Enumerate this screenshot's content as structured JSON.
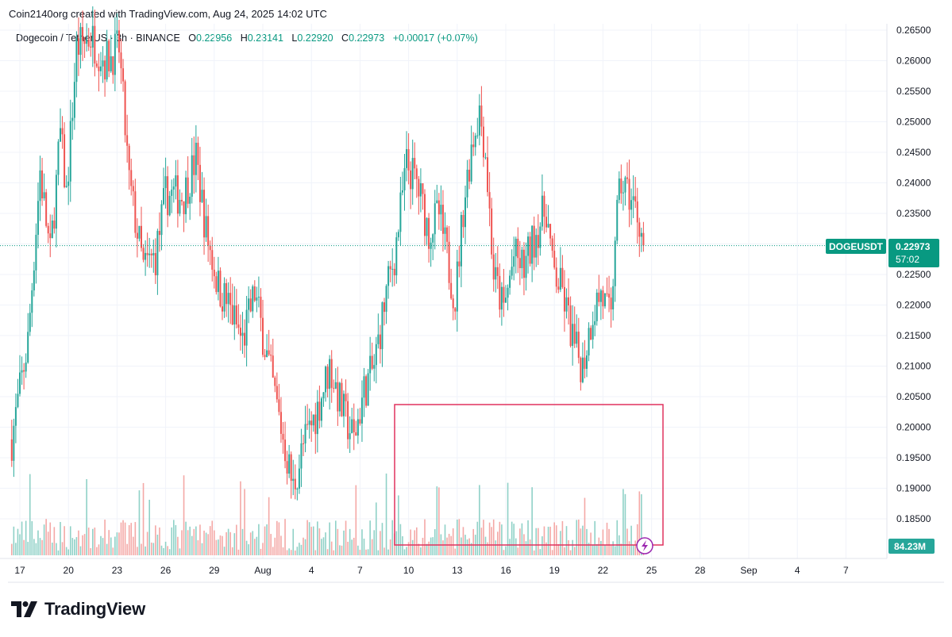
{
  "header": {
    "text": "Coin2140org created with TradingView.com, Aug 24, 2025 14:02 UTC"
  },
  "legend": {
    "symbol": "Dogecoin / TetherUS · 3h · BINANCE",
    "o_label": "O",
    "o_value": "0.22956",
    "h_label": "H",
    "h_value": "0.23141",
    "l_label": "L",
    "l_value": "0.22920",
    "c_label": "C",
    "c_value": "0.22973",
    "change": "+0.00017 (+0.07%)"
  },
  "price_tag": {
    "symbol": "DOGEUSDT",
    "price": "0.22973",
    "countdown": "57:02"
  },
  "volume_tag": "84.23M",
  "brand": {
    "text": "TradingView"
  },
  "colors": {
    "up": "#26a69a",
    "down": "#ef5350",
    "up_vol": "#8fd1c7",
    "down_vol": "#f4a8a6",
    "box": "#e0325e",
    "lightning": "#9c27b0",
    "tag": "#089981"
  },
  "chart_data": {
    "type": "candlestick",
    "y_axis": {
      "ticks": [
        "0.26500",
        "0.26000",
        "0.25500",
        "0.25000",
        "0.24500",
        "0.24000",
        "0.23500",
        "0.23000",
        "0.22500",
        "0.22000",
        "0.21500",
        "0.21000",
        "0.20500",
        "0.20000",
        "0.19500",
        "0.19000",
        "0.18500"
      ]
    },
    "x_axis": {
      "ticks": [
        "17",
        "20",
        "23",
        "26",
        "29",
        "Aug",
        "4",
        "7",
        "10",
        "13",
        "16",
        "19",
        "22",
        "25",
        "28",
        "Sep",
        "4",
        "7"
      ]
    },
    "last_price": 0.22973,
    "anchors": [
      {
        "date": "Jul 16 12:00",
        "close": 0.198
      },
      {
        "date": "Jul 17 12:00",
        "close": 0.214
      },
      {
        "date": "Jul 18 06:00",
        "close": 0.242
      },
      {
        "date": "Jul 18 21:00",
        "close": 0.228
      },
      {
        "date": "Jul 19 12:00",
        "close": 0.248
      },
      {
        "date": "Jul 19 21:00",
        "close": 0.238
      },
      {
        "date": "Jul 20 12:00",
        "close": 0.262
      },
      {
        "date": "Jul 21 09:00",
        "close": 0.264
      },
      {
        "date": "Jul 22 06:00",
        "close": 0.26
      },
      {
        "date": "Jul 23 03:00",
        "close": 0.262
      },
      {
        "date": "Jul 23 18:00",
        "close": 0.24
      },
      {
        "date": "Jul 24 15:00",
        "close": 0.226
      },
      {
        "date": "Jul 25 09:00",
        "close": 0.228
      },
      {
        "date": "Jul 26 00:00",
        "close": 0.238
      },
      {
        "date": "Jul 27 03:00",
        "close": 0.238
      },
      {
        "date": "Jul 27 21:00",
        "close": 0.244
      },
      {
        "date": "Jul 28 12:00",
        "close": 0.232
      },
      {
        "date": "Jul 29 06:00",
        "close": 0.223
      },
      {
        "date": "Jul 29 21:00",
        "close": 0.22
      },
      {
        "date": "Jul 30 18:00",
        "close": 0.214
      },
      {
        "date": "Jul 31 12:00",
        "close": 0.222
      },
      {
        "date": "Aug 01 09:00",
        "close": 0.21
      },
      {
        "date": "Aug 02 03:00",
        "close": 0.2
      },
      {
        "date": "Aug 02 21:00",
        "close": 0.19
      },
      {
        "date": "Aug 03 12:00",
        "close": 0.197
      },
      {
        "date": "Aug 04 09:00",
        "close": 0.203
      },
      {
        "date": "Aug 05 03:00",
        "close": 0.21
      },
      {
        "date": "Aug 05 21:00",
        "close": 0.203
      },
      {
        "date": "Aug 06 15:00",
        "close": 0.198
      },
      {
        "date": "Aug 07 06:00",
        "close": 0.206
      },
      {
        "date": "Aug 07 21:00",
        "close": 0.21
      },
      {
        "date": "Aug 08 15:00",
        "close": 0.222
      },
      {
        "date": "Aug 09 03:00",
        "close": 0.228
      },
      {
        "date": "Aug 09 21:00",
        "close": 0.243
      },
      {
        "date": "Aug 10 12:00",
        "close": 0.24
      },
      {
        "date": "Aug 11 06:00",
        "close": 0.232
      },
      {
        "date": "Aug 11 21:00",
        "close": 0.235
      },
      {
        "date": "Aug 12 12:00",
        "close": 0.226
      },
      {
        "date": "Aug 12 21:00",
        "close": 0.221
      },
      {
        "date": "Aug 13 09:00",
        "close": 0.236
      },
      {
        "date": "Aug 13 21:00",
        "close": 0.246
      },
      {
        "date": "Aug 14 09:00",
        "close": 0.252
      },
      {
        "date": "Aug 14 18:00",
        "close": 0.245
      },
      {
        "date": "Aug 15 06:00",
        "close": 0.225
      },
      {
        "date": "Aug 15 21:00",
        "close": 0.219
      },
      {
        "date": "Aug 16 12:00",
        "close": 0.228
      },
      {
        "date": "Aug 17 03:00",
        "close": 0.226
      },
      {
        "date": "Aug 17 21:00",
        "close": 0.232
      },
      {
        "date": "Aug 18 12:00",
        "close": 0.236
      },
      {
        "date": "Aug 18 21:00",
        "close": 0.226
      },
      {
        "date": "Aug 19 12:00",
        "close": 0.222
      },
      {
        "date": "Aug 20 06:00",
        "close": 0.213
      },
      {
        "date": "Aug 20 18:00",
        "close": 0.21
      },
      {
        "date": "Aug 21 09:00",
        "close": 0.219
      },
      {
        "date": "Aug 21 21:00",
        "close": 0.222
      },
      {
        "date": "Aug 22 12:00",
        "close": 0.217
      },
      {
        "date": "Aug 22 18:00",
        "close": 0.232
      },
      {
        "date": "Aug 23 03:00",
        "close": 0.24
      },
      {
        "date": "Aug 23 15:00",
        "close": 0.238
      },
      {
        "date": "Aug 24 06:00",
        "close": 0.234
      },
      {
        "date": "Aug 24 12:00",
        "close": 0.2297
      }
    ]
  }
}
